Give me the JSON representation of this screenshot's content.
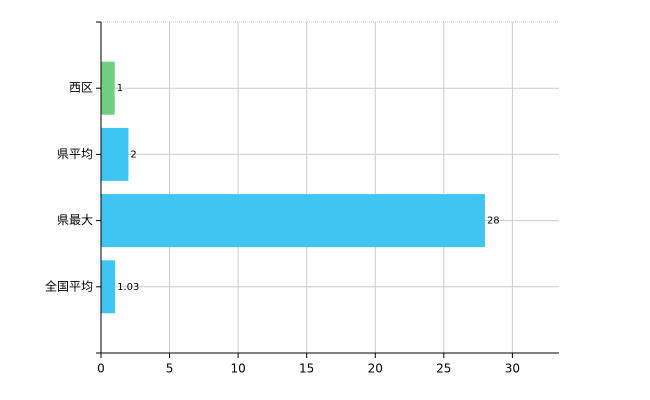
{
  "chart_data": {
    "type": "bar",
    "orientation": "horizontal",
    "categories": [
      "西区",
      "県平均",
      "県最大",
      "全国平均"
    ],
    "values": [
      1,
      2,
      28,
      1.03
    ],
    "colors": [
      "#6fcf7f",
      "#3ec5f2",
      "#3ec5f2",
      "#3ec5f2"
    ],
    "xlim": [
      0,
      33.4
    ],
    "xticks": [
      0,
      5,
      10,
      15,
      20,
      25,
      30
    ],
    "grid": true
  }
}
